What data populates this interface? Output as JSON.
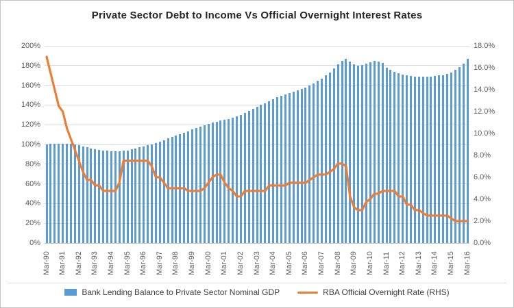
{
  "title": "Private Sector Debt to Income Vs Official Overnight Interest Rates",
  "colors": {
    "bar": "#5b9bd5",
    "line": "#ed7d31",
    "grid": "#d9d9d9",
    "axis_text": "#595959"
  },
  "legend": [
    {
      "label": "Bank Lending Balance to Private Sector Nominal GDP",
      "marker": "bar-swatch",
      "color": "#5b9bd5"
    },
    {
      "label": "RBA Official Overnight Rate (RHS)",
      "marker": "line-swatch",
      "color": "#ed7d31"
    }
  ],
  "chart_data": {
    "type": "bar",
    "title": "Private Sector Debt to Income Vs Official Overnight Interest Rates",
    "grid": "horizontal",
    "legend_position": "bottom",
    "x_tick_labels": [
      "Mar-90",
      "Mar-91",
      "Mar-92",
      "Mar-93",
      "Mar-94",
      "Mar-95",
      "Mar-96",
      "Mar-97",
      "Mar-98",
      "Mar-99",
      "Mar-00",
      "Mar-01",
      "Mar-02",
      "Mar-03",
      "Mar-04",
      "Mar-05",
      "Mar-06",
      "Mar-07",
      "Mar-08",
      "Mar-09",
      "Mar-10",
      "Mar-11",
      "Mar-12",
      "Mar-13",
      "Mar-14",
      "Mar-15",
      "Mar-16"
    ],
    "quarters_per_tick": 4,
    "left_axis": {
      "min": 0,
      "max": 200,
      "step": 20,
      "labels": [
        "0%",
        "20%",
        "40%",
        "60%",
        "80%",
        "100%",
        "120%",
        "140%",
        "160%",
        "180%",
        "200%"
      ]
    },
    "right_axis": {
      "min": 0,
      "max": 18,
      "step": 2,
      "labels": [
        "0.0%",
        "2.0%",
        "4.0%",
        "6.0%",
        "8.0%",
        "10.0%",
        "12.0%",
        "14.0%",
        "16.0%",
        "18.0%"
      ]
    },
    "series": [
      {
        "name": "Bank Lending Balance to Private Sector Nominal GDP",
        "type": "bar",
        "axis": "left",
        "unit": "%",
        "values": [
          100,
          100.5,
          101,
          101,
          101,
          101,
          100.5,
          100,
          99,
          98,
          97,
          96,
          95,
          94.5,
          94,
          93.5,
          93,
          93,
          93,
          93.5,
          94,
          95,
          96,
          97,
          98,
          99,
          100,
          101.5,
          103,
          104.5,
          106,
          107.5,
          109,
          110.5,
          112,
          113.5,
          115,
          116.5,
          118,
          119.5,
          121,
          122,
          123,
          124,
          125,
          126,
          127,
          128.5,
          130,
          132,
          134,
          136,
          138,
          140,
          142,
          144,
          146,
          148,
          149.5,
          151,
          152,
          153.5,
          155,
          156.5,
          158,
          160,
          162,
          164.5,
          167,
          170,
          173,
          177,
          181,
          185,
          186.5,
          184,
          181,
          180,
          180.5,
          182,
          183.5,
          184.5,
          184,
          182.5,
          178,
          175.5,
          173.5,
          172,
          171,
          170,
          169.5,
          169,
          168.5,
          168.5,
          168.5,
          169,
          169.5,
          170,
          170.5,
          171.5,
          173,
          175.5,
          178.5,
          182,
          186.5
        ]
      },
      {
        "name": "RBA Official Overnight Rate (RHS)",
        "type": "line",
        "axis": "right",
        "unit": "%",
        "values": [
          17,
          15.5,
          14,
          12.5,
          12,
          10.5,
          9.5,
          8.5,
          7.5,
          6.5,
          5.75,
          5.75,
          5.25,
          5.25,
          4.75,
          4.75,
          4.75,
          4.75,
          5.5,
          7.5,
          7.5,
          7.5,
          7.5,
          7.5,
          7.5,
          7.5,
          7,
          6,
          6,
          5.5,
          5,
          5,
          5,
          5,
          5,
          4.75,
          4.75,
          4.75,
          4.75,
          5,
          5.5,
          6,
          6.25,
          6.25,
          5.5,
          5,
          4.75,
          4.25,
          4.25,
          4.75,
          4.75,
          4.75,
          4.75,
          4.75,
          4.75,
          5.25,
          5.25,
          5.25,
          5.25,
          5.25,
          5.5,
          5.5,
          5.5,
          5.5,
          5.5,
          5.75,
          6,
          6.25,
          6.25,
          6.25,
          6.5,
          6.75,
          7.25,
          7.25,
          7,
          4.25,
          3.25,
          3,
          3,
          3.75,
          4,
          4.5,
          4.5,
          4.75,
          4.75,
          4.75,
          4.75,
          4.25,
          4.25,
          3.5,
          3.5,
          3,
          3,
          2.75,
          2.5,
          2.5,
          2.5,
          2.5,
          2.5,
          2.5,
          2.25,
          2,
          2,
          2,
          2
        ]
      }
    ]
  }
}
